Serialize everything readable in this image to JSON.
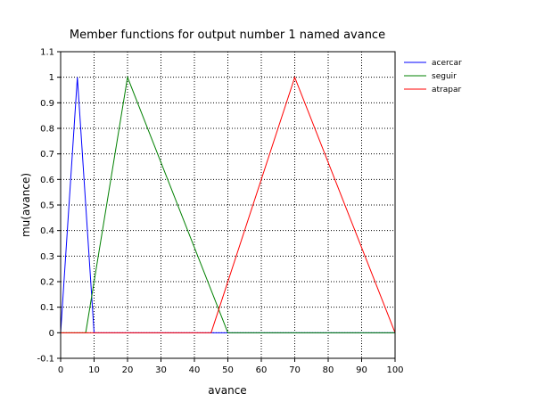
{
  "chart_data": {
    "type": "line",
    "title": "Member functions for output number 1 named avance",
    "xlabel": "avance",
    "ylabel": "mu(avance)",
    "xlim": [
      0,
      100
    ],
    "ylim": [
      -0.1,
      1.1
    ],
    "xticks": [
      0,
      10,
      20,
      30,
      40,
      50,
      60,
      70,
      80,
      90,
      100
    ],
    "yticks": [
      -0.1,
      0,
      0.1,
      0.2,
      0.3,
      0.4,
      0.5,
      0.6,
      0.7,
      0.8,
      0.9,
      1,
      1.1
    ],
    "xtick_labels": [
      "0",
      "10",
      "20",
      "30",
      "40",
      "50",
      "60",
      "70",
      "80",
      "90",
      "100"
    ],
    "ytick_labels": [
      "-0.1",
      "0",
      "0.1",
      "0.2",
      "0.3",
      "0.4",
      "0.5",
      "0.6",
      "0.7",
      "0.8",
      "0.9",
      "1",
      "1.1"
    ],
    "grid": true,
    "grid_style": "dotted",
    "legend_position": "top-right-outside",
    "series": [
      {
        "name": "acercar",
        "color": "#0000ff",
        "x": [
          0,
          0,
          5,
          10,
          100
        ],
        "y": [
          0,
          0,
          1,
          0,
          0
        ]
      },
      {
        "name": "seguir",
        "color": "#008000",
        "x": [
          0,
          7.5,
          20,
          50,
          100
        ],
        "y": [
          0,
          0,
          1,
          0,
          0
        ]
      },
      {
        "name": "atrapar",
        "color": "#ff0000",
        "x": [
          0,
          45,
          70,
          100,
          100
        ],
        "y": [
          0,
          0,
          1,
          0,
          0
        ]
      }
    ]
  }
}
